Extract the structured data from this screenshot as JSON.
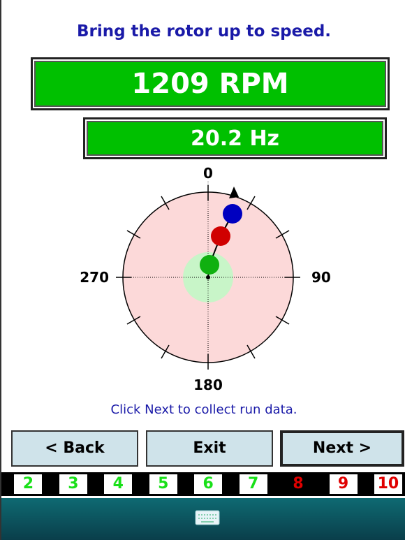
{
  "header": {
    "title": "Bring the rotor up to speed."
  },
  "readouts": {
    "rpm": "1209 RPM",
    "hz": "20.2 Hz"
  },
  "dial": {
    "labels": {
      "top": "0",
      "right": "90",
      "bottom": "180",
      "left": "270"
    }
  },
  "instruction": "Click Next to collect run data.",
  "buttons": {
    "back": "< Back",
    "exit": "Exit",
    "next": "Next >"
  },
  "steps": [
    "2",
    "3",
    "4",
    "5",
    "6",
    "7",
    "8",
    "9",
    "10"
  ]
}
